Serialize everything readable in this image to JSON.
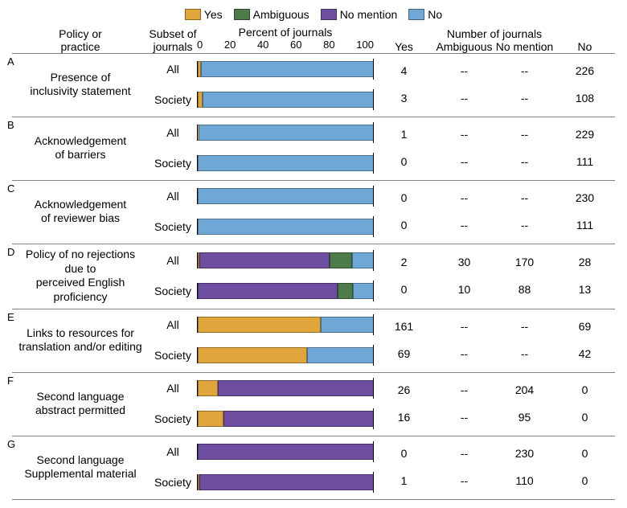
{
  "colors": {
    "yes": "#e1a63b",
    "ambiguous": "#4d7b4a",
    "no_mention": "#6d4ea0",
    "no": "#6fa8d6",
    "border": "#808080",
    "axis": "#000000"
  },
  "legend": [
    {
      "key": "yes",
      "label": "Yes"
    },
    {
      "key": "ambiguous",
      "label": "Ambiguous"
    },
    {
      "key": "no_mention",
      "label": "No mention"
    },
    {
      "key": "no",
      "label": "No"
    }
  ],
  "headers": {
    "policy": "Policy or\npractice",
    "subset": "Subset of\njournals",
    "chart_title": "Percent of journals",
    "numbers_title": "Number of journals",
    "num_cols": [
      "Yes",
      "Ambiguous",
      "No mention",
      "No"
    ]
  },
  "axis": {
    "ticks": [
      0,
      20,
      40,
      60,
      80,
      100
    ]
  },
  "sections": [
    {
      "letter": "A",
      "policy": "Presence of\ninclusivity statement",
      "rows": [
        {
          "subset": "All",
          "counts": {
            "yes": 4,
            "ambiguous": "--",
            "no_mention": "--",
            "no": 226
          },
          "percents": {
            "yes": 1.7,
            "ambiguous": 0,
            "no_mention": 0,
            "no": 98.3
          }
        },
        {
          "subset": "Society",
          "counts": {
            "yes": 3,
            "ambiguous": "--",
            "no_mention": "--",
            "no": 108
          },
          "percents": {
            "yes": 2.7,
            "ambiguous": 0,
            "no_mention": 0,
            "no": 97.3
          }
        }
      ]
    },
    {
      "letter": "B",
      "policy": "Acknowledgement\nof barriers",
      "rows": [
        {
          "subset": "All",
          "counts": {
            "yes": 1,
            "ambiguous": "--",
            "no_mention": "--",
            "no": 229
          },
          "percents": {
            "yes": 0.4,
            "ambiguous": 0,
            "no_mention": 0,
            "no": 99.6
          }
        },
        {
          "subset": "Society",
          "counts": {
            "yes": 0,
            "ambiguous": "--",
            "no_mention": "--",
            "no": 111
          },
          "percents": {
            "yes": 0,
            "ambiguous": 0,
            "no_mention": 0,
            "no": 100
          }
        }
      ]
    },
    {
      "letter": "C",
      "policy": "Acknowledgement\nof reviewer bias",
      "rows": [
        {
          "subset": "All",
          "counts": {
            "yes": 0,
            "ambiguous": "--",
            "no_mention": "--",
            "no": 230
          },
          "percents": {
            "yes": 0,
            "ambiguous": 0,
            "no_mention": 0,
            "no": 100
          }
        },
        {
          "subset": "Society",
          "counts": {
            "yes": 0,
            "ambiguous": "--",
            "no_mention": "--",
            "no": 111
          },
          "percents": {
            "yes": 0,
            "ambiguous": 0,
            "no_mention": 0,
            "no": 100
          }
        }
      ]
    },
    {
      "letter": "D",
      "policy": "Policy of no rejections due to\nperceived English proficiency",
      "rows": [
        {
          "subset": "All",
          "counts": {
            "yes": 2,
            "ambiguous": 30,
            "no_mention": 170,
            "no": 28
          },
          "percents": {
            "yes": 0.9,
            "ambiguous": 13.0,
            "no_mention": 73.9,
            "no": 12.2
          }
        },
        {
          "subset": "Society",
          "counts": {
            "yes": 0,
            "ambiguous": 10,
            "no_mention": 88,
            "no": 13
          },
          "percents": {
            "yes": 0,
            "ambiguous": 9.0,
            "no_mention": 79.3,
            "no": 11.7
          }
        }
      ]
    },
    {
      "letter": "E",
      "policy": "Links to resources for\ntranslation and/or editing",
      "rows": [
        {
          "subset": "All",
          "counts": {
            "yes": 161,
            "ambiguous": "--",
            "no_mention": "--",
            "no": 69
          },
          "percents": {
            "yes": 70.0,
            "ambiguous": 0,
            "no_mention": 0,
            "no": 30.0
          }
        },
        {
          "subset": "Society",
          "counts": {
            "yes": 69,
            "ambiguous": "--",
            "no_mention": "--",
            "no": 42
          },
          "percents": {
            "yes": 62.2,
            "ambiguous": 0,
            "no_mention": 0,
            "no": 37.8
          }
        }
      ]
    },
    {
      "letter": "F",
      "policy": "Second language\nabstract permitted",
      "rows": [
        {
          "subset": "All",
          "counts": {
            "yes": 26,
            "ambiguous": "--",
            "no_mention": 204,
            "no": 0
          },
          "percents": {
            "yes": 11.3,
            "ambiguous": 0,
            "no_mention": 88.7,
            "no": 0
          }
        },
        {
          "subset": "Society",
          "counts": {
            "yes": 16,
            "ambiguous": "--",
            "no_mention": 95,
            "no": 0
          },
          "percents": {
            "yes": 14.4,
            "ambiguous": 0,
            "no_mention": 85.6,
            "no": 0
          }
        }
      ]
    },
    {
      "letter": "G",
      "policy": "Second language\nSupplemental material",
      "rows": [
        {
          "subset": "All",
          "counts": {
            "yes": 0,
            "ambiguous": "--",
            "no_mention": 230,
            "no": 0
          },
          "percents": {
            "yes": 0,
            "ambiguous": 0,
            "no_mention": 100,
            "no": 0
          }
        },
        {
          "subset": "Society",
          "counts": {
            "yes": 1,
            "ambiguous": "--",
            "no_mention": 110,
            "no": 0
          },
          "percents": {
            "yes": 0.9,
            "ambiguous": 0,
            "no_mention": 99.1,
            "no": 0
          }
        }
      ]
    }
  ]
}
